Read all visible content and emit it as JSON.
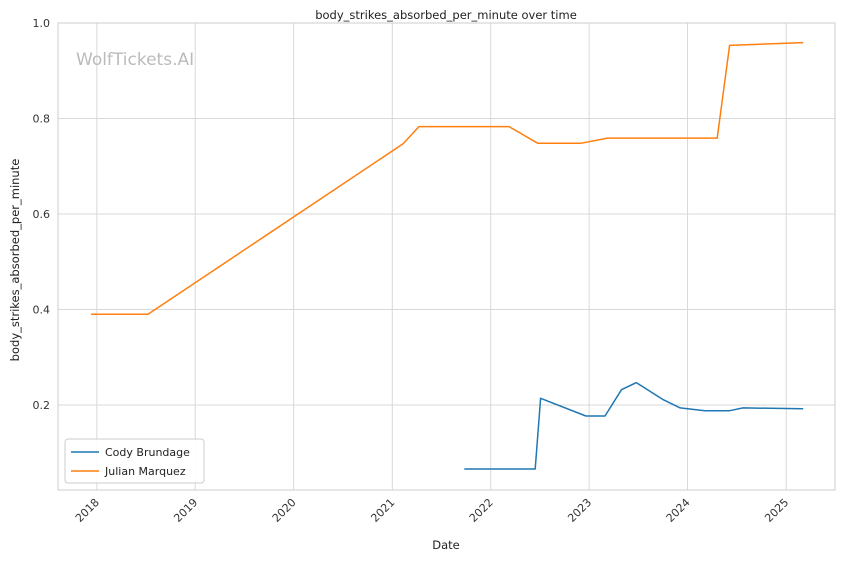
{
  "chart_data": {
    "type": "line",
    "title": "body_strikes_absorbed_per_minute over time",
    "xlabel": "Date",
    "ylabel": "body_strikes_absorbed_per_minute",
    "watermark": "WolfTickets.AI",
    "x_ticks": [
      "2018",
      "2019",
      "2020",
      "2021",
      "2022",
      "2023",
      "2024",
      "2025"
    ],
    "y_ticks": [
      "0.2",
      "0.4",
      "0.6",
      "0.8",
      "1.0"
    ],
    "xlim": [
      "2017-08-10",
      "2025-07-01"
    ],
    "ylim": [
      0.022,
      1.0
    ],
    "grid": true,
    "legend_position": "lower-left",
    "series": [
      {
        "name": "Cody Brundage",
        "color": "#1f77b4",
        "points": [
          {
            "x": "2021-09-25",
            "y": 0.066
          },
          {
            "x": "2022-06-15",
            "y": 0.066
          },
          {
            "x": "2022-07-05",
            "y": 0.214
          },
          {
            "x": "2022-12-20",
            "y": 0.177
          },
          {
            "x": "2023-03-01",
            "y": 0.177
          },
          {
            "x": "2023-05-01",
            "y": 0.232
          },
          {
            "x": "2023-06-25",
            "y": 0.247
          },
          {
            "x": "2023-09-30",
            "y": 0.212
          },
          {
            "x": "2023-12-05",
            "y": 0.194
          },
          {
            "x": "2024-03-05",
            "y": 0.188
          },
          {
            "x": "2024-06-05",
            "y": 0.188
          },
          {
            "x": "2024-07-25",
            "y": 0.194
          },
          {
            "x": "2025-03-05",
            "y": 0.192
          }
        ]
      },
      {
        "name": "Julian Marquez",
        "color": "#ff7f0e",
        "points": [
          {
            "x": "2017-12-10",
            "y": 0.39
          },
          {
            "x": "2018-07-10",
            "y": 0.39
          },
          {
            "x": "2021-02-10",
            "y": 0.747
          },
          {
            "x": "2021-04-10",
            "y": 0.783
          },
          {
            "x": "2022-03-10",
            "y": 0.783
          },
          {
            "x": "2022-06-25",
            "y": 0.748
          },
          {
            "x": "2022-12-01",
            "y": 0.748
          },
          {
            "x": "2023-03-10",
            "y": 0.759
          },
          {
            "x": "2024-04-20",
            "y": 0.759
          },
          {
            "x": "2024-06-05",
            "y": 0.953
          },
          {
            "x": "2025-03-05",
            "y": 0.959
          }
        ]
      }
    ]
  }
}
